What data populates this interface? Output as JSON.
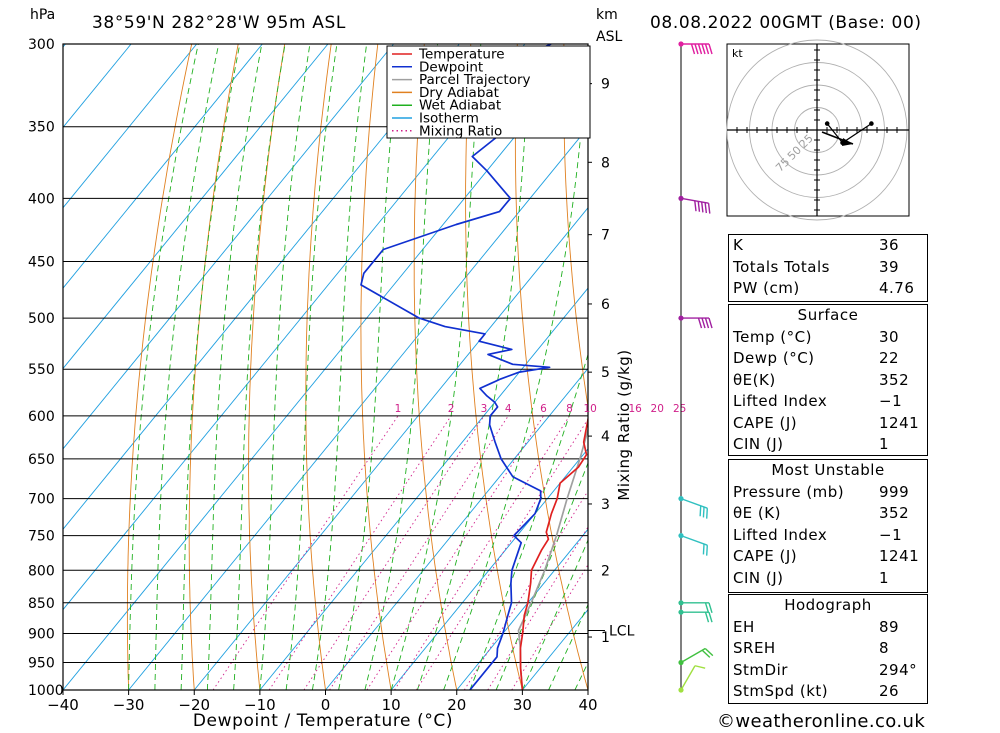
{
  "header": {
    "location": "38°59'N 282°28'W 95m ASL",
    "run": "08.08.2022 00GMT (Base: 00)",
    "left_unit": "hPa",
    "km_label": "km",
    "asl_label": "ASL",
    "credit": "©weatheronline.co.uk"
  },
  "chart_data": {
    "type": "line",
    "xlabel": "Dewpoint / Temperature (°C)",
    "ylabel": "hPa",
    "right_axis_label": "Mixing Ratio (g/kg)",
    "xlim": [
      -40,
      40
    ],
    "ylim": [
      1000,
      300
    ],
    "x_ticks": [
      "−40",
      "−30",
      "−20",
      "−10",
      "0",
      "10",
      "20",
      "30",
      "40"
    ],
    "pressure_levels": [
      300,
      350,
      400,
      450,
      500,
      550,
      600,
      650,
      700,
      750,
      800,
      850,
      900,
      950,
      1000
    ],
    "km_ticks": [
      {
        "label": "1",
        "p": 906
      },
      {
        "label": "2",
        "p": 800
      },
      {
        "label": "3",
        "p": 707
      },
      {
        "label": "4",
        "p": 623
      },
      {
        "label": "5",
        "p": 553
      },
      {
        "label": "6",
        "p": 487
      },
      {
        "label": "7",
        "p": 428
      },
      {
        "label": "8",
        "p": 374
      },
      {
        "label": "9",
        "p": 323
      }
    ],
    "lcl": {
      "label": "LCL",
      "p": 895
    },
    "mixing_ratio_labels": [
      "1",
      "2",
      "3",
      "4",
      "6",
      "8",
      "10",
      "16",
      "20",
      "25"
    ],
    "legend": [
      "Temperature",
      "Dewpoint",
      "Parcel Trajectory",
      "Dry Adiabat",
      "Wet Adiabat",
      "Isotherm",
      "Mixing Ratio"
    ],
    "colors": {
      "temperature": "#e02020",
      "dewpoint": "#1030d0",
      "parcel": "#a0a0a0",
      "dry_adiabat": "#e08020",
      "wet_adiabat": "#20b020",
      "isotherm": "#20a0e0",
      "mixing_ratio": "#d0208a"
    },
    "series": [
      {
        "name": "Temperature",
        "points": [
          [
            1000,
            30
          ],
          [
            960,
            27
          ],
          [
            925,
            24.5
          ],
          [
            900,
            23
          ],
          [
            870,
            21
          ],
          [
            850,
            20
          ],
          [
            820,
            18
          ],
          [
            800,
            16.5
          ],
          [
            770,
            15.5
          ],
          [
            755,
            15.2
          ],
          [
            745,
            14
          ],
          [
            720,
            12.5
          ],
          [
            700,
            11.5
          ],
          [
            680,
            10
          ],
          [
            660,
            10.8
          ],
          [
            645,
            10.5
          ],
          [
            630,
            8.5
          ],
          [
            600,
            6
          ],
          [
            580,
            4
          ],
          [
            568,
            3.8
          ],
          [
            550,
            3
          ],
          [
            530,
            2.5
          ],
          [
            510,
            1
          ],
          [
            500,
            0
          ],
          [
            480,
            -2
          ],
          [
            460,
            -4.5
          ],
          [
            440,
            -7.5
          ],
          [
            420,
            -11
          ],
          [
            400,
            -15
          ],
          [
            390,
            -16
          ],
          [
            380,
            -17
          ],
          [
            366,
            -20
          ]
        ]
      },
      {
        "name": "Dewpoint",
        "points": [
          [
            1000,
            22
          ],
          [
            960,
            22
          ],
          [
            940,
            22
          ],
          [
            925,
            21
          ],
          [
            900,
            20
          ],
          [
            870,
            18.5
          ],
          [
            850,
            17.5
          ],
          [
            820,
            15
          ],
          [
            800,
            13.5
          ],
          [
            760,
            11.5
          ],
          [
            750,
            9.5
          ],
          [
            720,
            10
          ],
          [
            700,
            9
          ],
          [
            690,
            8
          ],
          [
            672,
            2
          ],
          [
            650,
            -2
          ],
          [
            630,
            -5
          ],
          [
            610,
            -8
          ],
          [
            600,
            -9
          ],
          [
            590,
            -9
          ],
          [
            585,
            -10
          ],
          [
            578,
            -12
          ],
          [
            570,
            -14
          ],
          [
            565,
            -13
          ],
          [
            560,
            -12
          ],
          [
            553,
            -10
          ],
          [
            548,
            -6
          ],
          [
            545,
            -12
          ],
          [
            535,
            -17
          ],
          [
            530,
            -14
          ],
          [
            522,
            -20
          ],
          [
            515,
            -20
          ],
          [
            508,
            -27
          ],
          [
            500,
            -32
          ],
          [
            470,
            -45
          ],
          [
            460,
            -46
          ],
          [
            440,
            -46
          ],
          [
            420,
            -38
          ],
          [
            410,
            -33
          ],
          [
            400,
            -33
          ],
          [
            380,
            -40
          ],
          [
            370,
            -44
          ],
          [
            350,
            -42
          ],
          [
            340,
            -40
          ],
          [
            330,
            -42
          ],
          [
            322,
            -46
          ],
          [
            320,
            -48
          ],
          [
            313,
            -46
          ],
          [
            305,
            -48
          ],
          [
            300,
            -46
          ]
        ]
      },
      {
        "name": "Parcel Trajectory",
        "points": [
          [
            1000,
            30
          ],
          [
            960,
            27
          ],
          [
            925,
            24.5
          ],
          [
            895,
            22
          ],
          [
            850,
            20.5
          ],
          [
            800,
            18.5
          ],
          [
            750,
            16
          ],
          [
            700,
            13
          ],
          [
            650,
            10
          ],
          [
            600,
            6.5
          ],
          [
            550,
            3
          ],
          [
            500,
            -1
          ],
          [
            450,
            -6
          ],
          [
            400,
            -12.5
          ],
          [
            366,
            -18
          ]
        ]
      }
    ],
    "wind_barbs": [
      {
        "p": 1000,
        "color": "#a0e040",
        "speed_kt": 10,
        "dir": 210
      },
      {
        "p": 950,
        "color": "#40c040",
        "speed_kt": 15,
        "dir": 240
      },
      {
        "p": 865,
        "color": "#30c090",
        "speed_kt": 20,
        "dir": 270
      },
      {
        "p": 850,
        "color": "#30c090",
        "speed_kt": 20,
        "dir": 270
      },
      {
        "p": 750,
        "color": "#30c0c0",
        "speed_kt": 20,
        "dir": 290
      },
      {
        "p": 700,
        "color": "#30c0c0",
        "speed_kt": 25,
        "dir": 290
      },
      {
        "p": 500,
        "color": "#a020a0",
        "speed_kt": 40,
        "dir": 270
      },
      {
        "p": 400,
        "color": "#a020a0",
        "speed_kt": 45,
        "dir": 280
      },
      {
        "p": 300,
        "color": "#e020a0",
        "speed_kt": 55,
        "dir": 270
      }
    ]
  },
  "hodograph": {
    "unit": "kt",
    "ring_labels": [
      "25",
      "50",
      "75"
    ],
    "points": [
      [
        6,
        4
      ],
      [
        15,
        -8
      ],
      [
        32,
        4
      ]
    ]
  },
  "indices": [
    {
      "label": "K",
      "value": "36"
    },
    {
      "label": "Totals Totals",
      "value": "39"
    },
    {
      "label": "PW (cm)",
      "value": "4.76"
    }
  ],
  "surface": {
    "title": "Surface",
    "rows": [
      {
        "label": "Temp (°C)",
        "value": "30"
      },
      {
        "label": "Dewp (°C)",
        "value": "22"
      },
      {
        "label": "θE(K)",
        "value": "352"
      },
      {
        "label": "Lifted Index",
        "value": "−1"
      },
      {
        "label": "CAPE (J)",
        "value": "1241"
      },
      {
        "label": "CIN (J)",
        "value": "1"
      }
    ]
  },
  "most_unstable": {
    "title": "Most Unstable",
    "rows": [
      {
        "label": "Pressure (mb)",
        "value": "999"
      },
      {
        "label": "θE (K)",
        "value": "352"
      },
      {
        "label": "Lifted Index",
        "value": "−1"
      },
      {
        "label": "CAPE (J)",
        "value": "1241"
      },
      {
        "label": "CIN (J)",
        "value": "1"
      }
    ]
  },
  "hodograph_table": {
    "title": "Hodograph",
    "rows": [
      {
        "label": "EH",
        "value": "89"
      },
      {
        "label": "SREH",
        "value": "8"
      },
      {
        "label": "StmDir",
        "value": "294°"
      },
      {
        "label": "StmSpd (kt)",
        "value": "26"
      }
    ]
  }
}
